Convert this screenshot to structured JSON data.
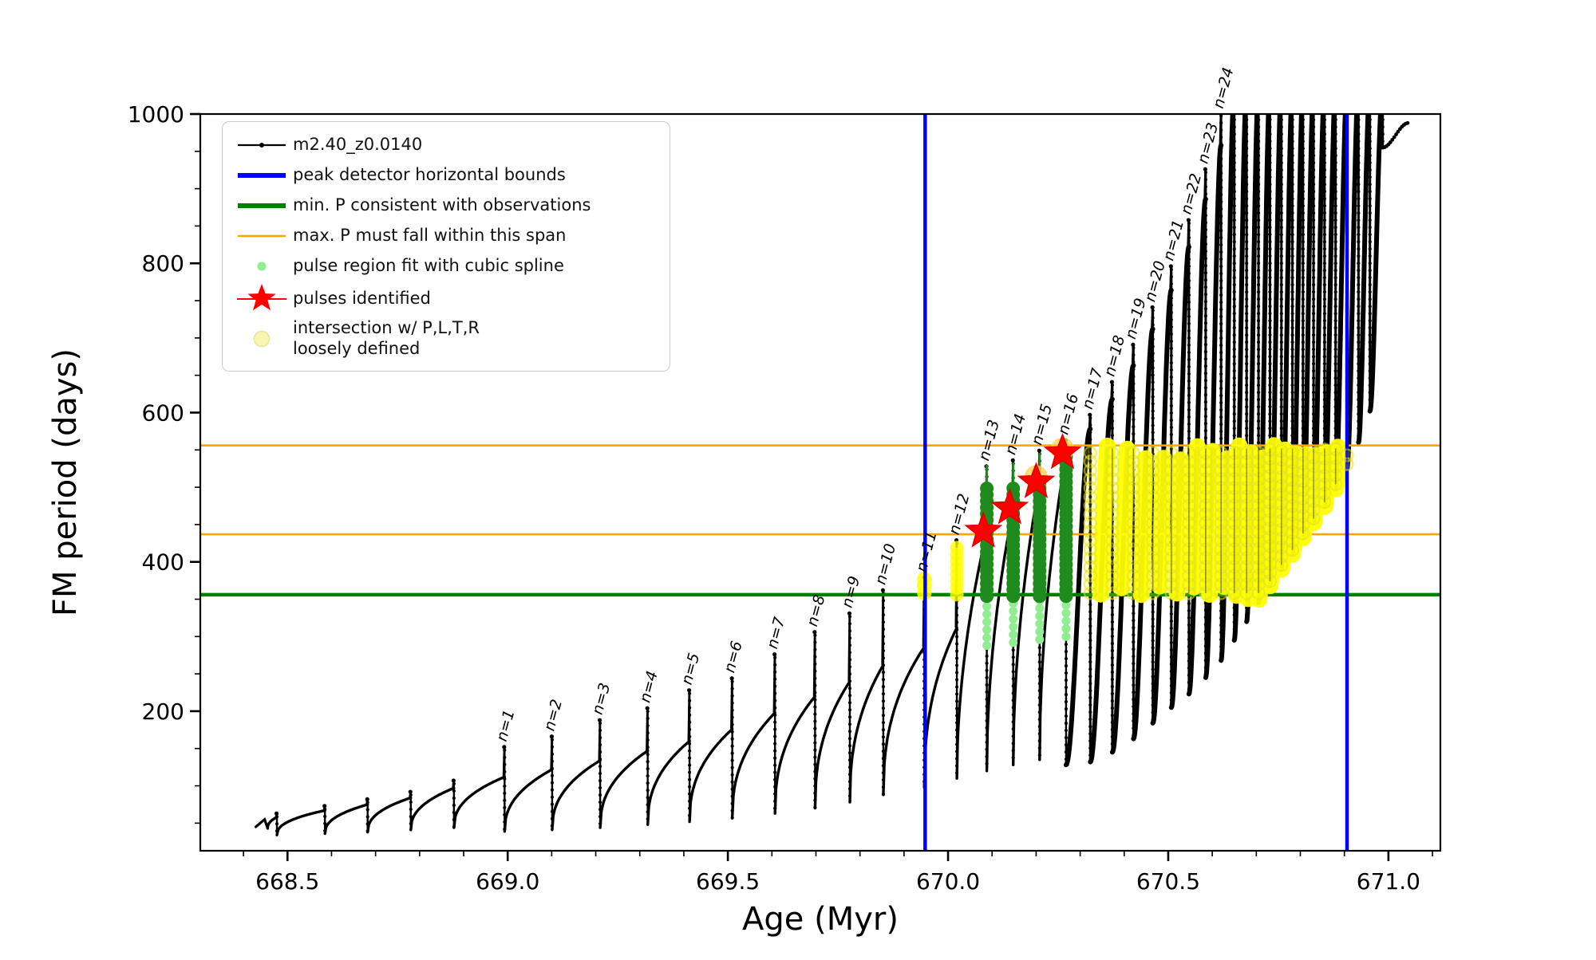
{
  "colors": {
    "black": "#000000",
    "blue": "#0000ff",
    "green": "#008000",
    "orange": "#ffa500",
    "light_green": "#90ee90",
    "forest_green": "#1f8b1f",
    "yellow": "#ffff00",
    "yellow_ring_edge": "#e0e028",
    "pale_yellow": "#f7f7b2",
    "pale_yellow_edge": "#e8e89a",
    "red": "#ff0000",
    "glow": "#ffd24d",
    "spine": "#000000"
  },
  "legend": {
    "entries": [
      {
        "icon": "line-dot-marker-icon",
        "label": "m2.40_z0.0140"
      },
      {
        "icon": "blue-line-icon",
        "label": "peak detector horizontal bounds"
      },
      {
        "icon": "green-line-icon",
        "label": "min. P consistent with observations"
      },
      {
        "icon": "orange-line-icon",
        "label": "max. P must fall within this span"
      },
      {
        "icon": "green-dot-icon",
        "label": "pulse region fit with cubic spline"
      },
      {
        "icon": "red-star-icon",
        "label": "pulses identified"
      },
      {
        "icon": "yellow-dot-icon",
        "label": "intersection w/ P,L,T,R",
        "label2": "loosely defined"
      }
    ]
  },
  "chart_data": {
    "type": "line",
    "title": "",
    "xlabel": "Age (Myr)",
    "ylabel": "FM period (days)",
    "series_label": "m2.40_z0.0140",
    "xlim": [
      668.302,
      671.118
    ],
    "ylim": [
      13,
      1000
    ],
    "x_major_ticks": [
      668.5,
      669.0,
      669.5,
      670.0,
      670.5,
      671.0
    ],
    "x_tick_labels": [
      "668.5",
      "669.0",
      "669.5",
      "670.0",
      "670.5",
      "671.0"
    ],
    "x_minor_step": 0.1,
    "y_major_ticks": [
      200,
      400,
      600,
      800,
      1000
    ],
    "y_tick_labels": [
      "200",
      "400",
      "600",
      "800",
      "1000"
    ],
    "y_minor_step": 50,
    "grid": false,
    "legend_position": "upper left",
    "vlines_blue": [
      669.948,
      670.906
    ],
    "hline_green": 356,
    "hlines_orange": [
      556,
      437
    ],
    "start": {
      "age": 668.428,
      "period": 45
    },
    "intro": [
      [
        668.448,
        55
      ],
      [
        668.455,
        43
      ]
    ],
    "pulses": [
      {
        "label": null,
        "age": 668.476,
        "peak": 58,
        "spike": 63,
        "trough": 34
      },
      {
        "label": null,
        "age": 668.585,
        "peak": 67,
        "spike": 73,
        "trough": 36
      },
      {
        "label": null,
        "age": 668.682,
        "peak": 75,
        "spike": 82,
        "trough": 38
      },
      {
        "label": null,
        "age": 668.78,
        "peak": 84,
        "spike": 92,
        "trough": 41
      },
      {
        "label": null,
        "age": 668.878,
        "peak": 97,
        "spike": 107,
        "trough": 44
      },
      {
        "label": "n=1",
        "age": 668.993,
        "peak": 112,
        "spike": 152,
        "trough": 39
      },
      {
        "label": "n=2",
        "age": 669.101,
        "peak": 122,
        "spike": 166,
        "trough": 41
      },
      {
        "label": "n=3",
        "age": 669.21,
        "peak": 134,
        "spike": 188,
        "trough": 44
      },
      {
        "label": "n=4",
        "age": 669.318,
        "peak": 147,
        "spike": 204,
        "trough": 48
      },
      {
        "label": "n=5",
        "age": 669.413,
        "peak": 160,
        "spike": 228,
        "trough": 52
      },
      {
        "label": "n=6",
        "age": 669.51,
        "peak": 176,
        "spike": 244,
        "trough": 57
      },
      {
        "label": "n=7",
        "age": 669.607,
        "peak": 198,
        "spike": 276,
        "trough": 63
      },
      {
        "label": "n=8",
        "age": 669.698,
        "peak": 220,
        "spike": 306,
        "trough": 70
      },
      {
        "label": "n=9",
        "age": 669.777,
        "peak": 240,
        "spike": 331,
        "trough": 78
      },
      {
        "label": "n=10",
        "age": 669.853,
        "peak": 262,
        "spike": 362,
        "trough": 88
      },
      {
        "label": "n=11",
        "age": 669.946,
        "peak": 286,
        "spike": 379,
        "trough": 98
      },
      {
        "label": "n=12",
        "age": 670.02,
        "peak": 312,
        "spike": 429,
        "trough": 110
      },
      {
        "label": "n=13",
        "age": 670.088,
        "peak": 440,
        "spike": 528,
        "trough": 120
      },
      {
        "label": "n=14",
        "age": 670.148,
        "peak": 472,
        "spike": 536,
        "trough": 128
      },
      {
        "label": "n=15",
        "age": 670.208,
        "peak": 507,
        "spike": 549,
        "trough": 135
      },
      {
        "label": "n=16",
        "age": 670.268,
        "peak": 545,
        "spike": 563,
        "trough": 128
      },
      {
        "label": "n=17",
        "age": 670.323,
        "peak": 578,
        "spike": 597,
        "trough": 132
      },
      {
        "label": "n=18",
        "age": 670.373,
        "peak": 618,
        "spike": 641,
        "trough": 145
      },
      {
        "label": "n=19",
        "age": 670.421,
        "peak": 663,
        "spike": 691,
        "trough": 163
      },
      {
        "label": "n=20",
        "age": 670.465,
        "peak": 712,
        "spike": 741,
        "trough": 184
      },
      {
        "label": "n=21",
        "age": 670.507,
        "peak": 764,
        "spike": 796,
        "trough": 205
      },
      {
        "label": "n=22",
        "age": 670.547,
        "peak": 822,
        "spike": 858,
        "trough": 223
      },
      {
        "label": "n=23",
        "age": 670.585,
        "peak": 886,
        "spike": 926,
        "trough": 245
      },
      {
        "label": "n=24",
        "age": 670.62,
        "peak": 958,
        "spike": 1002,
        "trough": 268
      },
      {
        "label": null,
        "age": 670.65,
        "peak": 1035,
        "spike": 1035,
        "trough": 295
      },
      {
        "label": null,
        "age": 670.678,
        "peak": 1035,
        "spike": 1035,
        "trough": 320
      },
      {
        "label": null,
        "age": 670.705,
        "peak": 1035,
        "spike": 1035,
        "trough": 345
      },
      {
        "label": null,
        "age": 670.731,
        "peak": 1035,
        "spike": 1035,
        "trough": 368
      },
      {
        "label": null,
        "age": 670.757,
        "peak": 1035,
        "spike": 1035,
        "trough": 390
      },
      {
        "label": null,
        "age": 670.782,
        "peak": 1035,
        "spike": 1035,
        "trough": 410
      },
      {
        "label": null,
        "age": 670.806,
        "peak": 1035,
        "spike": 1035,
        "trough": 432
      },
      {
        "label": null,
        "age": 670.83,
        "peak": 1035,
        "spike": 1035,
        "trough": 452
      },
      {
        "label": null,
        "age": 670.855,
        "peak": 1035,
        "spike": 1035,
        "trough": 474
      },
      {
        "label": null,
        "age": 670.88,
        "peak": 1035,
        "spike": 1035,
        "trough": 498
      },
      {
        "label": null,
        "age": 670.906,
        "peak": 1035,
        "spike": 1035,
        "trough": 525
      },
      {
        "label": null,
        "age": 670.932,
        "peak": 1035,
        "spike": 1035,
        "trough": 560
      },
      {
        "label": null,
        "age": 670.958,
        "peak": 1035,
        "spike": 1035,
        "trough": 602
      },
      {
        "label": null,
        "age": 670.987,
        "peak": 1035,
        "spike": 1035,
        "trough": 955
      },
      {
        "label": null,
        "age": 671.045,
        "peak": 988,
        "spike": null,
        "trough": null,
        "dots_only": true
      }
    ],
    "stars": [
      [
        670.08,
        441
      ],
      [
        670.14,
        472
      ],
      [
        670.2,
        507
      ],
      [
        670.26,
        546
      ]
    ],
    "star_glows": [
      [
        670.2,
        514
      ],
      [
        670.26,
        551
      ]
    ],
    "spline_columns": [
      {
        "age": 670.088,
        "light_bottom": 288,
        "dark_top": 500,
        "spike_top": 530
      },
      {
        "age": 670.148,
        "light_bottom": 292,
        "dark_top": 503,
        "spike_top": 533
      },
      {
        "age": 670.208,
        "light_bottom": 296,
        "dark_top": 512,
        "spike_top": 546
      },
      {
        "age": 670.268,
        "light_bottom": 300,
        "dark_top": 545,
        "spike_top": 561
      }
    ],
    "yellow": {
      "band": [
        356,
        556
      ],
      "ring_age_range": [
        670.31,
        670.915
      ],
      "rise_age_range": [
        670.36,
        670.915
      ],
      "n11_dots": {
        "age": 669.946,
        "periods": [
          358,
          368,
          377
        ]
      },
      "n12_column": {
        "age": 670.02,
        "from": 356,
        "to": 424
      }
    }
  }
}
